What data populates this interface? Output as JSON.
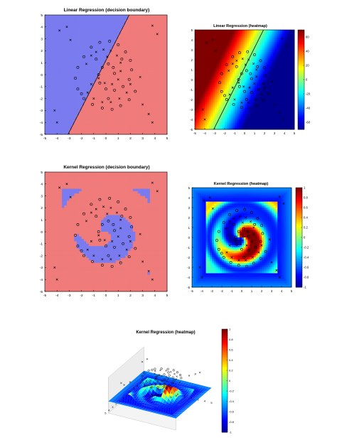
{
  "colors": {
    "class_a_region": "#7b7bf0",
    "class_b_region": "#f07b7b",
    "jet": [
      "#00008f",
      "#0000ff",
      "#00ffff",
      "#ffff00",
      "#ff0000",
      "#800000"
    ],
    "marker": "#000000"
  },
  "chart_data": [
    {
      "id": "p1",
      "type": "scatter",
      "title": "Linear Regression (decision boundary)",
      "xlim": [
        -5,
        5
      ],
      "ylim": [
        -5,
        5
      ],
      "xticks": [
        "-5",
        "-4",
        "-3",
        "-2",
        "-1",
        "0",
        "1",
        "2",
        "3",
        "4",
        "5"
      ],
      "yticks": [
        "5",
        "4",
        "3",
        "2",
        "1",
        "0",
        "-1",
        "-2",
        "-3",
        "-4",
        "-5"
      ],
      "boundary_line": {
        "slope": 2.0,
        "intercept": 1.2
      },
      "regions": [
        "class_a_region",
        "class_b_region"
      ]
    },
    {
      "id": "p2",
      "type": "heatmap",
      "title": "Linear Regression (heatmap)",
      "xlim": [
        -5,
        5
      ],
      "ylim": [
        -5,
        5
      ],
      "xticks": [
        "-5",
        "-4",
        "-3",
        "-2",
        "-1",
        "0",
        "1",
        "2",
        "3",
        "4",
        "5"
      ],
      "yticks": [
        "5",
        "4",
        "3",
        "2",
        "1",
        "0",
        "-1",
        "-2",
        "-3",
        "-4",
        "-5"
      ],
      "colorbar_ticks": [
        "60",
        "40",
        "20",
        "0",
        "-20",
        "-40",
        "-60"
      ],
      "colorbar_range": [
        -70,
        70
      ],
      "boundary_line": {
        "slope": 2.0,
        "intercept": 1.2
      }
    },
    {
      "id": "p3",
      "type": "scatter",
      "title": "Kernel Regression (decision boundary)",
      "xlim": [
        -5,
        5
      ],
      "ylim": [
        -5,
        5
      ],
      "xticks": [
        "-5",
        "-4",
        "-3",
        "-2",
        "-1",
        "0",
        "1",
        "2",
        "3",
        "4",
        "5"
      ],
      "yticks": [
        "5",
        "4",
        "3",
        "2",
        "1",
        "0",
        "-1",
        "-2",
        "-3",
        "-4",
        "-5"
      ],
      "regions": [
        "class_a_region",
        "class_b_region"
      ]
    },
    {
      "id": "p4",
      "type": "heatmap",
      "title": "Kernel Regression (heatmap)",
      "xlim": [
        -5,
        5
      ],
      "ylim": [
        -5,
        5
      ],
      "xticks": [
        "-5",
        "-4",
        "-3",
        "-2",
        "-1",
        "0",
        "1",
        "2",
        "3",
        "4",
        "5"
      ],
      "yticks": [
        "5",
        "4",
        "3",
        "2",
        "1",
        "0",
        "-1",
        "-2",
        "-3",
        "-4",
        "-5"
      ],
      "colorbar_ticks": [
        "1",
        "0.8",
        "0.6",
        "0.4",
        "0.2",
        "0",
        "-0.2",
        "-0.4",
        "-0.6",
        "-0.8",
        "-1"
      ],
      "colorbar_range": [
        -1,
        1
      ]
    },
    {
      "id": "p5",
      "type": "surface",
      "title": "Kernel Regression (heatmap)",
      "xticks": [
        "-5",
        "-4",
        "-3",
        "-2",
        "-1",
        "0",
        "1",
        "2",
        "3",
        "4",
        "5"
      ],
      "yticks": [
        "5",
        "4",
        "3",
        "2",
        "1",
        "0",
        "-1",
        "-2",
        "-3",
        "-4",
        "-5"
      ],
      "colorbar_ticks": [
        "1",
        "0.8",
        "0.6",
        "0.4",
        "0.2",
        "0",
        "-0.2",
        "-0.4",
        "-0.6",
        "-0.8",
        "-1"
      ],
      "colorbar_range": [
        -1,
        1
      ]
    }
  ],
  "points": {
    "circles": [
      [
        -1.8,
        1.5
      ],
      [
        -1.2,
        2.3
      ],
      [
        -0.5,
        2.7
      ],
      [
        0.3,
        2.8
      ],
      [
        1.0,
        2.5
      ],
      [
        1.6,
        1.9
      ],
      [
        2.0,
        1.2
      ],
      [
        2.1,
        0.4
      ],
      [
        1.9,
        -0.4
      ],
      [
        1.4,
        -1.0
      ],
      [
        0.7,
        -1.3
      ],
      [
        0.0,
        -1.2
      ],
      [
        -0.5,
        -0.7
      ],
      [
        -0.6,
        0.0
      ],
      [
        -0.3,
        0.6
      ],
      [
        0.2,
        0.9
      ],
      [
        0.6,
        0.6
      ],
      [
        0.7,
        0.1
      ],
      [
        -2.3,
        0.6
      ],
      [
        -2.5,
        -0.3
      ],
      [
        -2.3,
        -1.2
      ],
      [
        -1.8,
        -2.0
      ],
      [
        -1.1,
        -2.5
      ],
      [
        -0.3,
        -2.8
      ],
      [
        0.5,
        -2.9
      ],
      [
        1.2,
        -2.6
      ],
      [
        1.9,
        -2.1
      ],
      [
        2.4,
        -1.4
      ],
      [
        -2.0,
        -1.6
      ],
      [
        -0.8,
        1.3
      ],
      [
        1.3,
        1.3
      ],
      [
        0.2,
        -2.0
      ]
    ],
    "crosses": [
      [
        -3.8,
        3.7
      ],
      [
        -3.2,
        4.0
      ],
      [
        3.5,
        -3.3
      ],
      [
        3.8,
        -4.0
      ],
      [
        -4.0,
        -4.0
      ],
      [
        -4.2,
        -3.0
      ],
      [
        3.8,
        4.1
      ],
      [
        4.2,
        3.4
      ],
      [
        -1.2,
        1.6
      ],
      [
        -0.8,
        1.9
      ],
      [
        -0.2,
        2.1
      ],
      [
        0.4,
        2.0
      ],
      [
        0.9,
        1.6
      ],
      [
        1.2,
        1.0
      ],
      [
        1.2,
        0.3
      ],
      [
        1.0,
        -0.4
      ],
      [
        0.5,
        -0.8
      ],
      [
        -0.1,
        -0.7
      ],
      [
        -0.6,
        -0.3
      ],
      [
        -1.2,
        -0.8
      ],
      [
        -1.5,
        -1.5
      ],
      [
        -1.0,
        -2.0
      ],
      [
        -0.3,
        -2.3
      ],
      [
        0.4,
        -2.3
      ],
      [
        1.1,
        -2.0
      ],
      [
        1.7,
        -1.5
      ],
      [
        2.0,
        -0.8
      ],
      [
        2.8,
        -0.2
      ],
      [
        -1.6,
        0.9
      ],
      [
        0.1,
        1.5
      ],
      [
        3.0,
        -2.5
      ],
      [
        -2.9,
        2.9
      ]
    ]
  }
}
